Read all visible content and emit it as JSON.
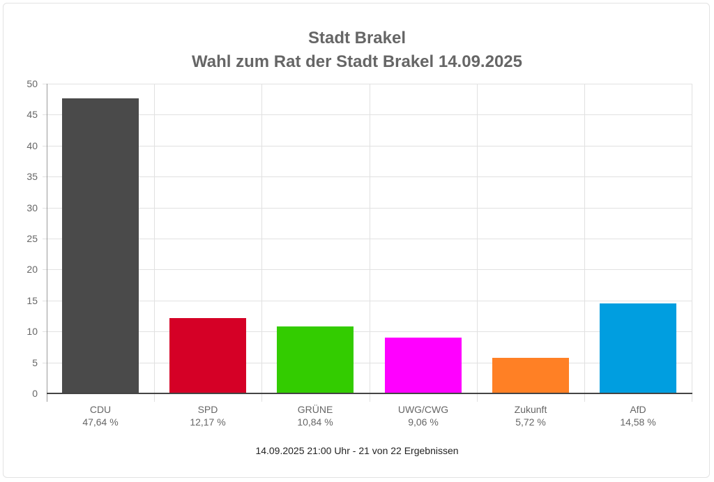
{
  "chart": {
    "title_line1": "Stadt Brakel",
    "title_line2": "Wahl zum Rat der Stadt Brakel 14.09.2025",
    "footer": "14.09.2025 21:00 Uhr - 21 von 22 Ergebnissen",
    "y_ticks": [
      "50",
      "45",
      "40",
      "35",
      "30",
      "25",
      "20",
      "15",
      "10",
      "5",
      "0"
    ],
    "bars": [
      {
        "party": "CDU",
        "value_label": "47,64 %",
        "color": "#4a4a4a"
      },
      {
        "party": "SPD",
        "value_label": "12,17 %",
        "color": "#d50026"
      },
      {
        "party": "GRÜNE",
        "value_label": "10,84 %",
        "color": "#33cc00"
      },
      {
        "party": "UWG/CWG",
        "value_label": "9,06 %",
        "color": "#ff00ff"
      },
      {
        "party": "Zukunft",
        "value_label": "5,72 %",
        "color": "#ff8025"
      },
      {
        "party": "AfD",
        "value_label": "14,58 %",
        "color": "#009ee0"
      }
    ]
  },
  "chart_data": {
    "type": "bar",
    "title": "Stadt Brakel — Wahl zum Rat der Stadt Brakel 14.09.2025",
    "categories": [
      "CDU",
      "SPD",
      "GRÜNE",
      "UWG/CWG",
      "Zukunft",
      "AfD"
    ],
    "values": [
      47.64,
      12.17,
      10.84,
      9.06,
      5.72,
      14.58
    ],
    "colors": [
      "#4a4a4a",
      "#d50026",
      "#33cc00",
      "#ff00ff",
      "#ff8025",
      "#009ee0"
    ],
    "xlabel": "",
    "ylabel": "",
    "ylim": [
      0,
      50
    ],
    "yticks": [
      0,
      5,
      10,
      15,
      20,
      25,
      30,
      35,
      40,
      45,
      50
    ],
    "grid": true,
    "legend": "none",
    "footnote": "14.09.2025 21:00 Uhr - 21 von 22 Ergebnissen"
  }
}
